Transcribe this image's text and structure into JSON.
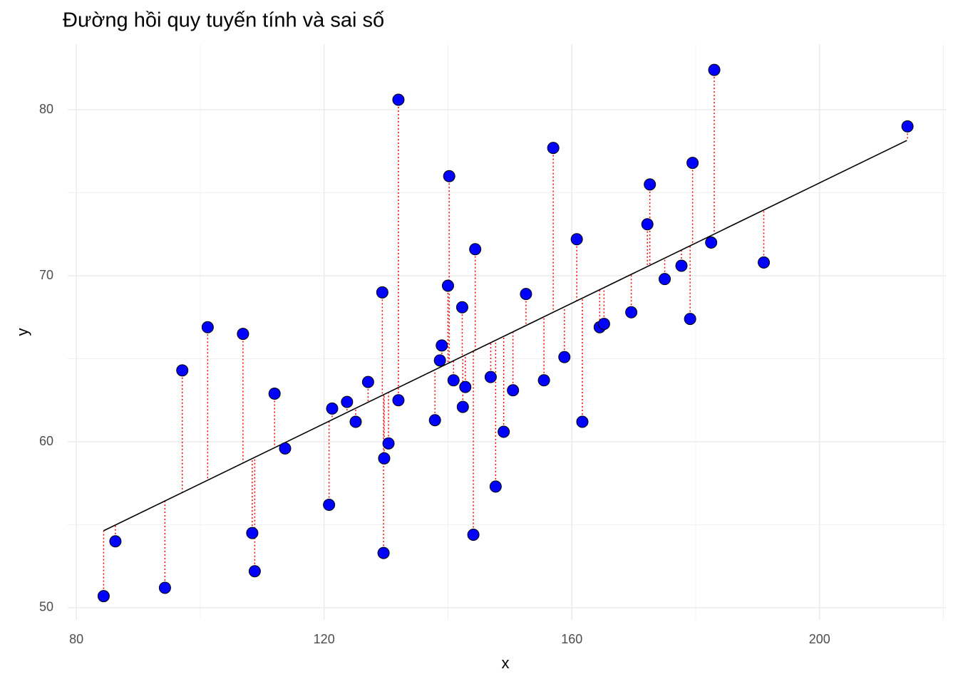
{
  "chart_data": {
    "type": "scatter",
    "title": "Đường hồi quy tuyến tính và sai số",
    "x_label": "x",
    "y_label": "y",
    "xlim": [
      78.6,
      220.4
    ],
    "ylim": [
      49.27,
      83.95
    ],
    "xticks": [
      80,
      120,
      160,
      200
    ],
    "yticks": [
      50,
      60,
      70,
      80
    ],
    "x_minor_grid": [
      100,
      140,
      180,
      220
    ],
    "y_minor_grid": [
      55,
      65,
      75
    ],
    "grid": true,
    "series": [
      {
        "color": "#0000ff",
        "x": [
          84.4,
          86.3,
          94.3,
          97.1,
          101.2,
          106.9,
          108.4,
          108.8,
          112.0,
          113.7,
          120.8,
          121.3,
          123.7,
          125.1,
          127.1,
          129.4,
          129.6,
          129.7,
          130.4,
          132.0,
          132.0,
          137.9,
          138.7,
          139.0,
          140.0,
          140.2,
          140.9,
          142.3,
          142.4,
          142.8,
          144.1,
          144.4,
          146.9,
          147.7,
          149.0,
          150.5,
          152.6,
          155.5,
          157.0,
          158.8,
          160.8,
          161.7,
          164.5,
          165.2,
          169.6,
          172.2,
          172.6,
          175.0,
          177.7,
          179.1,
          179.5,
          182.5,
          183.0,
          191.0,
          214.2
        ],
        "values": [
          50.7,
          54.0,
          51.2,
          64.3,
          66.9,
          66.5,
          54.5,
          52.2,
          62.9,
          59.6,
          56.2,
          62.0,
          62.4,
          61.2,
          63.6,
          69.0,
          53.3,
          59.0,
          59.9,
          80.6,
          62.5,
          61.3,
          64.9,
          65.8,
          69.4,
          76.0,
          63.7,
          68.1,
          62.1,
          63.3,
          54.4,
          71.6,
          63.9,
          57.3,
          60.6,
          63.1,
          68.9,
          63.7,
          77.7,
          65.1,
          72.2,
          61.2,
          66.9,
          67.1,
          67.8,
          73.1,
          75.5,
          69.8,
          70.6,
          67.4,
          76.8,
          72.0,
          82.4,
          70.8,
          79.0
        ]
      }
    ],
    "fit_line": {
      "color": "#000000",
      "x": [
        84.4,
        214.1
      ],
      "values": [
        54.64,
        78.15
      ]
    },
    "residual_color": "#ff0000"
  }
}
